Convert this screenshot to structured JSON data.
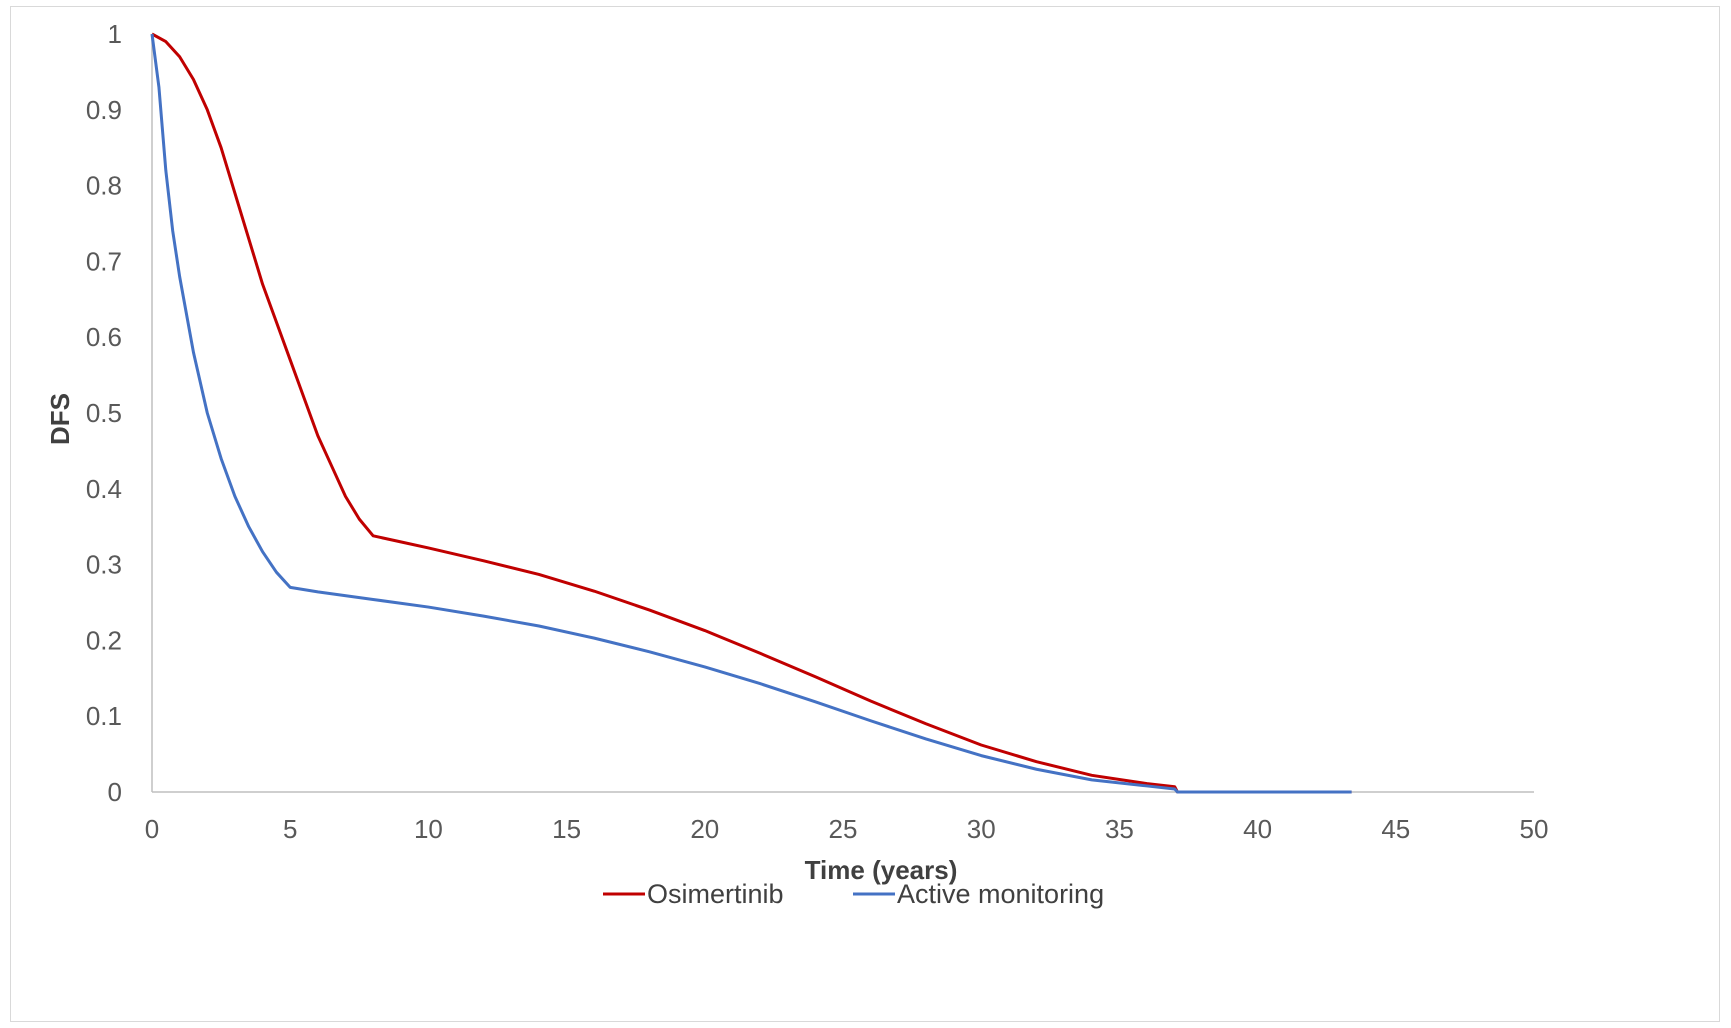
{
  "chart_data": {
    "type": "line",
    "title": "",
    "xlabel": "Time (years)",
    "ylabel": "DFS",
    "xlim": [
      0,
      50
    ],
    "ylim": [
      0,
      1
    ],
    "x_ticks": [
      "0",
      "5",
      "10",
      "15",
      "20",
      "25",
      "30",
      "35",
      "40",
      "45",
      "50"
    ],
    "y_ticks": [
      "0",
      "0.1",
      "0.2",
      "0.3",
      "0.4",
      "0.5",
      "0.6",
      "0.7",
      "0.8",
      "0.9",
      "1"
    ],
    "grid": false,
    "legend_position": "bottom",
    "series": [
      {
        "name": "Osimertinib",
        "color": "#c00000",
        "points": [
          [
            0,
            1.0
          ],
          [
            0.5,
            0.99
          ],
          [
            1,
            0.97
          ],
          [
            1.5,
            0.94
          ],
          [
            2,
            0.9
          ],
          [
            2.5,
            0.85
          ],
          [
            3,
            0.79
          ],
          [
            3.5,
            0.73
          ],
          [
            4,
            0.67
          ],
          [
            4.5,
            0.62
          ],
          [
            5,
            0.57
          ],
          [
            5.5,
            0.52
          ],
          [
            6,
            0.47
          ],
          [
            6.5,
            0.43
          ],
          [
            7,
            0.39
          ],
          [
            7.5,
            0.36
          ],
          [
            8,
            0.338
          ],
          [
            9,
            0.33
          ],
          [
            10,
            0.322
          ],
          [
            12,
            0.305
          ],
          [
            14,
            0.287
          ],
          [
            16,
            0.265
          ],
          [
            18,
            0.24
          ],
          [
            20,
            0.213
          ],
          [
            22,
            0.183
          ],
          [
            24,
            0.152
          ],
          [
            26,
            0.12
          ],
          [
            28,
            0.09
          ],
          [
            30,
            0.062
          ],
          [
            32,
            0.04
          ],
          [
            34,
            0.022
          ],
          [
            36,
            0.011
          ],
          [
            37,
            0.007
          ],
          [
            37.1,
            0.0
          ],
          [
            43.4,
            0.0
          ]
        ]
      },
      {
        "name": "Active monitoring",
        "color": "#4472c4",
        "points": [
          [
            0,
            1.0
          ],
          [
            0.25,
            0.93
          ],
          [
            0.5,
            0.82
          ],
          [
            0.75,
            0.74
          ],
          [
            1,
            0.68
          ],
          [
            1.5,
            0.58
          ],
          [
            2,
            0.5
          ],
          [
            2.5,
            0.44
          ],
          [
            3,
            0.39
          ],
          [
            3.5,
            0.35
          ],
          [
            4,
            0.317
          ],
          [
            4.5,
            0.29
          ],
          [
            5,
            0.27
          ],
          [
            6,
            0.264
          ],
          [
            8,
            0.254
          ],
          [
            10,
            0.244
          ],
          [
            12,
            0.232
          ],
          [
            14,
            0.219
          ],
          [
            16,
            0.203
          ],
          [
            18,
            0.185
          ],
          [
            20,
            0.165
          ],
          [
            22,
            0.143
          ],
          [
            24,
            0.119
          ],
          [
            26,
            0.094
          ],
          [
            28,
            0.07
          ],
          [
            30,
            0.048
          ],
          [
            32,
            0.03
          ],
          [
            34,
            0.016
          ],
          [
            36,
            0.008
          ],
          [
            37,
            0.004
          ],
          [
            37.1,
            0.0
          ],
          [
            43.4,
            0.0
          ]
        ]
      }
    ]
  }
}
